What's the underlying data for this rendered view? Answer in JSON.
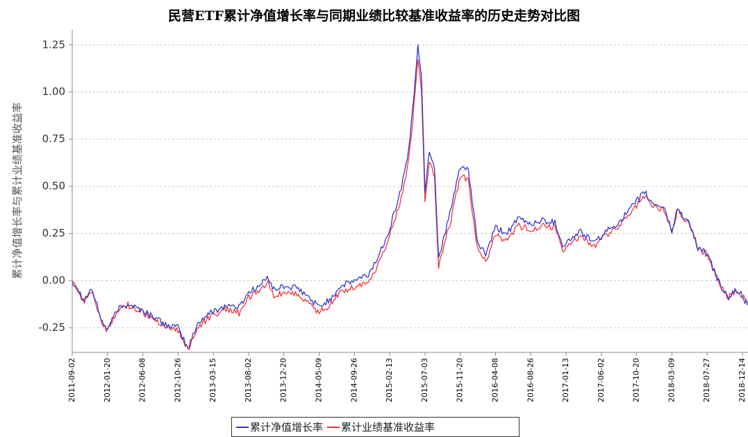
{
  "chart_data": {
    "type": "line",
    "title": "民营ETF累计净值增长率与同期业绩比较基准收益率的历史走势对比图",
    "ylabel": "累计净值增长率与累计业绩基准收益率",
    "xlabel": "",
    "ylim": [
      -0.38,
      1.33
    ],
    "y_ticks": [
      "1.25",
      "1.00",
      "0.75",
      "0.50",
      "0.25",
      "0.00",
      "-0.25"
    ],
    "x_ticks": [
      "2011-09-02",
      "2012-01-20",
      "2012-06-08",
      "2012-10-26",
      "2013-03-15",
      "2013-08-02",
      "2013-12-20",
      "2014-05-09",
      "2014-09-26",
      "2015-02-13",
      "2015-07-03",
      "2015-11-20",
      "2016-04-08",
      "2016-08-26",
      "2017-01-13",
      "2017-06-02",
      "2017-10-20",
      "2018-03-09",
      "2018-07-27",
      "2018-12-14"
    ],
    "grid": true,
    "legend_position": "bottom",
    "series": [
      {
        "name": "累计净值增长率",
        "color": "#3333cc",
        "points": [
          [
            "2011-09-02",
            0.0
          ],
          [
            "2011-10-20",
            -0.1
          ],
          [
            "2011-11-18",
            -0.04
          ],
          [
            "2011-12-30",
            -0.22
          ],
          [
            "2012-01-20",
            -0.26
          ],
          [
            "2012-03-01",
            -0.15
          ],
          [
            "2012-04-10",
            -0.12
          ],
          [
            "2012-06-08",
            -0.16
          ],
          [
            "2012-07-20",
            -0.19
          ],
          [
            "2012-09-01",
            -0.23
          ],
          [
            "2012-10-26",
            -0.25
          ],
          [
            "2012-12-04",
            -0.36
          ],
          [
            "2013-01-15",
            -0.22
          ],
          [
            "2013-03-15",
            -0.16
          ],
          [
            "2013-05-10",
            -0.13
          ],
          [
            "2013-06-25",
            -0.14
          ],
          [
            "2013-08-02",
            -0.06
          ],
          [
            "2013-09-12",
            -0.03
          ],
          [
            "2013-10-20",
            0.02
          ],
          [
            "2013-11-10",
            -0.05
          ],
          [
            "2013-12-20",
            -0.03
          ],
          [
            "2014-02-10",
            -0.04
          ],
          [
            "2014-03-20",
            -0.08
          ],
          [
            "2014-05-09",
            -0.14
          ],
          [
            "2014-06-20",
            -0.1
          ],
          [
            "2014-08-01",
            -0.03
          ],
          [
            "2014-09-26",
            0.0
          ],
          [
            "2014-11-20",
            0.03
          ],
          [
            "2014-12-31",
            0.13
          ],
          [
            "2015-02-13",
            0.28
          ],
          [
            "2015-03-31",
            0.49
          ],
          [
            "2015-04-30",
            0.7
          ],
          [
            "2015-05-15",
            0.9
          ],
          [
            "2015-06-05",
            1.25
          ],
          [
            "2015-06-19",
            1.08
          ],
          [
            "2015-07-03",
            0.48
          ],
          [
            "2015-07-20",
            0.69
          ],
          [
            "2015-08-10",
            0.6
          ],
          [
            "2015-08-26",
            0.12
          ],
          [
            "2015-10-15",
            0.38
          ],
          [
            "2015-11-20",
            0.61
          ],
          [
            "2015-12-22",
            0.58
          ],
          [
            "2016-01-28",
            0.2
          ],
          [
            "2016-02-29",
            0.14
          ],
          [
            "2016-04-08",
            0.28
          ],
          [
            "2016-05-20",
            0.25
          ],
          [
            "2016-07-10",
            0.33
          ],
          [
            "2016-08-26",
            0.3
          ],
          [
            "2016-10-10",
            0.32
          ],
          [
            "2016-11-30",
            0.31
          ],
          [
            "2016-12-30",
            0.19
          ],
          [
            "2017-01-13",
            0.2
          ],
          [
            "2017-03-10",
            0.26
          ],
          [
            "2017-05-10",
            0.2
          ],
          [
            "2017-06-02",
            0.24
          ],
          [
            "2017-08-01",
            0.3
          ],
          [
            "2017-09-20",
            0.37
          ],
          [
            "2017-10-20",
            0.42
          ],
          [
            "2017-11-20",
            0.47
          ],
          [
            "2017-12-20",
            0.41
          ],
          [
            "2018-02-06",
            0.39
          ],
          [
            "2018-03-09",
            0.26
          ],
          [
            "2018-03-30",
            0.38
          ],
          [
            "2018-05-20",
            0.3
          ],
          [
            "2018-06-20",
            0.17
          ],
          [
            "2018-07-27",
            0.14
          ],
          [
            "2018-09-15",
            -0.02
          ],
          [
            "2018-10-20",
            -0.09
          ],
          [
            "2018-11-20",
            -0.05
          ],
          [
            "2018-12-14",
            -0.08
          ],
          [
            "2019-01-03",
            -0.13
          ]
        ]
      },
      {
        "name": "累计业绩基准收益率",
        "color": "#ee3333",
        "points": [
          [
            "2011-09-02",
            -0.01
          ],
          [
            "2011-10-20",
            -0.11
          ],
          [
            "2011-11-18",
            -0.05
          ],
          [
            "2011-12-30",
            -0.23
          ],
          [
            "2012-01-20",
            -0.27
          ],
          [
            "2012-03-01",
            -0.16
          ],
          [
            "2012-04-10",
            -0.13
          ],
          [
            "2012-06-08",
            -0.17
          ],
          [
            "2012-07-20",
            -0.2
          ],
          [
            "2012-09-01",
            -0.24
          ],
          [
            "2012-10-26",
            -0.26
          ],
          [
            "2012-12-04",
            -0.37
          ],
          [
            "2013-01-15",
            -0.24
          ],
          [
            "2013-03-15",
            -0.18
          ],
          [
            "2013-05-10",
            -0.15
          ],
          [
            "2013-06-25",
            -0.17
          ],
          [
            "2013-08-02",
            -0.09
          ],
          [
            "2013-09-12",
            -0.06
          ],
          [
            "2013-10-20",
            -0.01
          ],
          [
            "2013-11-10",
            -0.08
          ],
          [
            "2013-12-20",
            -0.06
          ],
          [
            "2014-02-10",
            -0.07
          ],
          [
            "2014-03-20",
            -0.11
          ],
          [
            "2014-05-09",
            -0.17
          ],
          [
            "2014-06-20",
            -0.13
          ],
          [
            "2014-08-01",
            -0.06
          ],
          [
            "2014-09-26",
            -0.03
          ],
          [
            "2014-11-20",
            -0.01
          ],
          [
            "2014-12-31",
            0.09
          ],
          [
            "2015-02-13",
            0.24
          ],
          [
            "2015-03-31",
            0.44
          ],
          [
            "2015-04-30",
            0.64
          ],
          [
            "2015-05-15",
            0.84
          ],
          [
            "2015-06-05",
            1.19
          ],
          [
            "2015-06-19",
            1.02
          ],
          [
            "2015-07-03",
            0.42
          ],
          [
            "2015-07-20",
            0.63
          ],
          [
            "2015-08-10",
            0.55
          ],
          [
            "2015-08-26",
            0.08
          ],
          [
            "2015-10-15",
            0.33
          ],
          [
            "2015-11-20",
            0.56
          ],
          [
            "2015-12-22",
            0.53
          ],
          [
            "2016-01-28",
            0.16
          ],
          [
            "2016-02-29",
            0.1
          ],
          [
            "2016-04-08",
            0.24
          ],
          [
            "2016-05-20",
            0.21
          ],
          [
            "2016-07-10",
            0.29
          ],
          [
            "2016-08-26",
            0.27
          ],
          [
            "2016-10-10",
            0.29
          ],
          [
            "2016-11-30",
            0.28
          ],
          [
            "2016-12-30",
            0.16
          ],
          [
            "2017-01-13",
            0.17
          ],
          [
            "2017-03-10",
            0.24
          ],
          [
            "2017-05-10",
            0.18
          ],
          [
            "2017-06-02",
            0.22
          ],
          [
            "2017-08-01",
            0.28
          ],
          [
            "2017-09-20",
            0.35
          ],
          [
            "2017-10-20",
            0.4
          ],
          [
            "2017-11-20",
            0.45
          ],
          [
            "2017-12-20",
            0.4
          ],
          [
            "2018-02-06",
            0.38
          ],
          [
            "2018-03-09",
            0.26
          ],
          [
            "2018-03-30",
            0.37
          ],
          [
            "2018-05-20",
            0.3
          ],
          [
            "2018-06-20",
            0.17
          ],
          [
            "2018-07-27",
            0.14
          ],
          [
            "2018-09-15",
            -0.02
          ],
          [
            "2018-10-20",
            -0.09
          ],
          [
            "2018-11-20",
            -0.05
          ],
          [
            "2018-12-14",
            -0.08
          ],
          [
            "2019-01-03",
            -0.13
          ]
        ]
      }
    ]
  }
}
